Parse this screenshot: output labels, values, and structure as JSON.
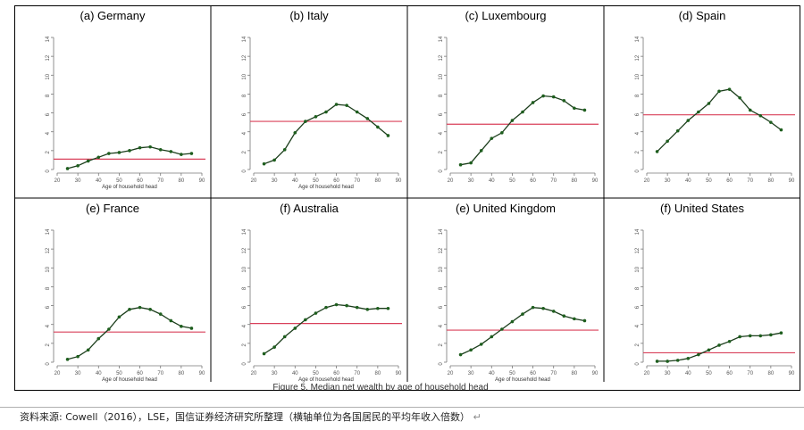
{
  "colors": {
    "series_line": "#1b3d1b",
    "marker": "#1e5e1e",
    "reference_line": "#d9405a",
    "frame": "#000000",
    "tick_text": "#555555"
  },
  "figure_caption_fragment": "Figure 5. Median net wealth by age of household head",
  "source_note": {
    "text": "资料来源: Cowell（2016），LSE，国信证券经济研究所整理（横轴单位为各国居民的平均年收入倍数）",
    "return_mark": "↵"
  },
  "chart_data": [
    {
      "type": "line",
      "title": "(a) Germany",
      "xlabel": "Age of household head",
      "ylabel": "",
      "xlim": [
        20,
        90
      ],
      "ylim": [
        0,
        14
      ],
      "x_ticks": [
        20,
        30,
        40,
        50,
        60,
        70,
        80,
        90
      ],
      "y_ticks": [
        0,
        2,
        4,
        6,
        8,
        10,
        12,
        14
      ],
      "series": [
        {
          "x": [
            25,
            30,
            35,
            40,
            45,
            50,
            55,
            60,
            65,
            70,
            75,
            80,
            85
          ],
          "values": [
            0.1,
            0.4,
            0.9,
            1.3,
            1.7,
            1.8,
            2.0,
            2.3,
            2.4,
            2.1,
            1.9,
            1.6,
            1.7
          ]
        }
      ],
      "reference_line": 1.1,
      "grid": false,
      "legend": "none"
    },
    {
      "type": "line",
      "title": "(b) Italy",
      "xlabel": "Age of household head",
      "ylabel": "",
      "xlim": [
        20,
        90
      ],
      "ylim": [
        0,
        14
      ],
      "x_ticks": [
        20,
        30,
        40,
        50,
        60,
        70,
        80,
        90
      ],
      "y_ticks": [
        0,
        2,
        4,
        6,
        8,
        10,
        12,
        14
      ],
      "series": [
        {
          "x": [
            25,
            30,
            35,
            40,
            45,
            50,
            55,
            60,
            65,
            70,
            75,
            80,
            85
          ],
          "values": [
            0.6,
            1.0,
            2.1,
            3.9,
            5.1,
            5.6,
            6.1,
            6.9,
            6.8,
            6.1,
            5.4,
            4.5,
            3.6
          ]
        }
      ],
      "reference_line": 5.1,
      "grid": false,
      "legend": "none"
    },
    {
      "type": "line",
      "title": "(c) Luxembourg",
      "xlabel": "",
      "ylabel": "",
      "xlim": [
        20,
        90
      ],
      "ylim": [
        0,
        14
      ],
      "x_ticks": [
        20,
        30,
        40,
        50,
        60,
        70,
        80,
        90
      ],
      "y_ticks": [
        0,
        2,
        4,
        6,
        8,
        10,
        12,
        14
      ],
      "series": [
        {
          "x": [
            25,
            30,
            35,
            40,
            45,
            50,
            55,
            60,
            65,
            70,
            75,
            80,
            85
          ],
          "values": [
            0.5,
            0.7,
            2.0,
            3.3,
            3.9,
            5.2,
            6.1,
            7.1,
            7.8,
            7.7,
            7.3,
            6.5,
            6.3
          ]
        }
      ],
      "reference_line": 4.8,
      "grid": false,
      "legend": "none"
    },
    {
      "type": "line",
      "title": "(d) Spain",
      "xlabel": "",
      "ylabel": "",
      "xlim": [
        20,
        90
      ],
      "ylim": [
        0,
        14
      ],
      "x_ticks": [
        20,
        30,
        40,
        50,
        60,
        70,
        80,
        90
      ],
      "y_ticks": [
        0,
        2,
        4,
        6,
        8,
        10,
        12,
        14
      ],
      "series": [
        {
          "x": [
            25,
            30,
            35,
            40,
            45,
            50,
            55,
            60,
            65,
            70,
            75,
            80,
            85
          ],
          "values": [
            1.9,
            3.0,
            4.1,
            5.2,
            6.1,
            7.0,
            8.3,
            8.5,
            7.6,
            6.3,
            5.7,
            5.0,
            4.2
          ]
        }
      ],
      "reference_line": 5.8,
      "grid": false,
      "legend": "none"
    },
    {
      "type": "line",
      "title": "(e) France",
      "xlabel": "Age of household head",
      "ylabel": "",
      "xlim": [
        20,
        90
      ],
      "ylim": [
        0,
        14
      ],
      "x_ticks": [
        20,
        30,
        40,
        50,
        60,
        70,
        80,
        90
      ],
      "y_ticks": [
        0,
        2,
        4,
        6,
        8,
        10,
        12,
        14
      ],
      "series": [
        {
          "x": [
            25,
            30,
            35,
            40,
            45,
            50,
            55,
            60,
            65,
            70,
            75,
            80,
            85
          ],
          "values": [
            0.3,
            0.6,
            1.3,
            2.5,
            3.5,
            4.8,
            5.6,
            5.8,
            5.6,
            5.1,
            4.4,
            3.8,
            3.6
          ]
        }
      ],
      "reference_line": 3.2,
      "grid": false,
      "legend": "none"
    },
    {
      "type": "line",
      "title": "(f) Australia",
      "xlabel": "Age of household head",
      "ylabel": "",
      "xlim": [
        20,
        90
      ],
      "ylim": [
        0,
        14
      ],
      "x_ticks": [
        20,
        30,
        40,
        50,
        60,
        70,
        80,
        90
      ],
      "y_ticks": [
        0,
        2,
        4,
        6,
        8,
        10,
        12,
        14
      ],
      "series": [
        {
          "x": [
            25,
            30,
            35,
            40,
            45,
            50,
            55,
            60,
            65,
            70,
            75,
            80,
            85
          ],
          "values": [
            0.9,
            1.6,
            2.7,
            3.6,
            4.5,
            5.2,
            5.8,
            6.1,
            6.0,
            5.8,
            5.6,
            5.7,
            5.7
          ]
        }
      ],
      "reference_line": 4.1,
      "grid": false,
      "legend": "none"
    },
    {
      "type": "line",
      "title": "(e) United Kingdom",
      "xlabel": "Age of household head",
      "ylabel": "",
      "xlim": [
        20,
        90
      ],
      "ylim": [
        0,
        14
      ],
      "x_ticks": [
        20,
        30,
        40,
        50,
        60,
        70,
        80,
        90
      ],
      "y_ticks": [
        0,
        2,
        4,
        6,
        8,
        10,
        12,
        14
      ],
      "series": [
        {
          "x": [
            25,
            30,
            35,
            40,
            45,
            50,
            55,
            60,
            65,
            70,
            75,
            80,
            85
          ],
          "values": [
            0.8,
            1.3,
            1.9,
            2.7,
            3.5,
            4.3,
            5.1,
            5.8,
            5.7,
            5.4,
            4.9,
            4.6,
            4.4
          ]
        }
      ],
      "reference_line": 3.4,
      "grid": false,
      "legend": "none"
    },
    {
      "type": "line",
      "title": "(f) United States",
      "xlabel": "",
      "ylabel": "",
      "xlim": [
        20,
        90
      ],
      "ylim": [
        0,
        14
      ],
      "x_ticks": [
        20,
        30,
        40,
        50,
        60,
        70,
        80,
        90
      ],
      "y_ticks": [
        0,
        2,
        4,
        6,
        8,
        10,
        12,
        14
      ],
      "series": [
        {
          "x": [
            25,
            30,
            35,
            40,
            45,
            50,
            55,
            60,
            65,
            70,
            75,
            80,
            85
          ],
          "values": [
            0.1,
            0.1,
            0.2,
            0.4,
            0.8,
            1.3,
            1.8,
            2.2,
            2.7,
            2.8,
            2.8,
            2.9,
            3.1
          ]
        }
      ],
      "reference_line": 1.0,
      "grid": false,
      "legend": "none"
    }
  ]
}
